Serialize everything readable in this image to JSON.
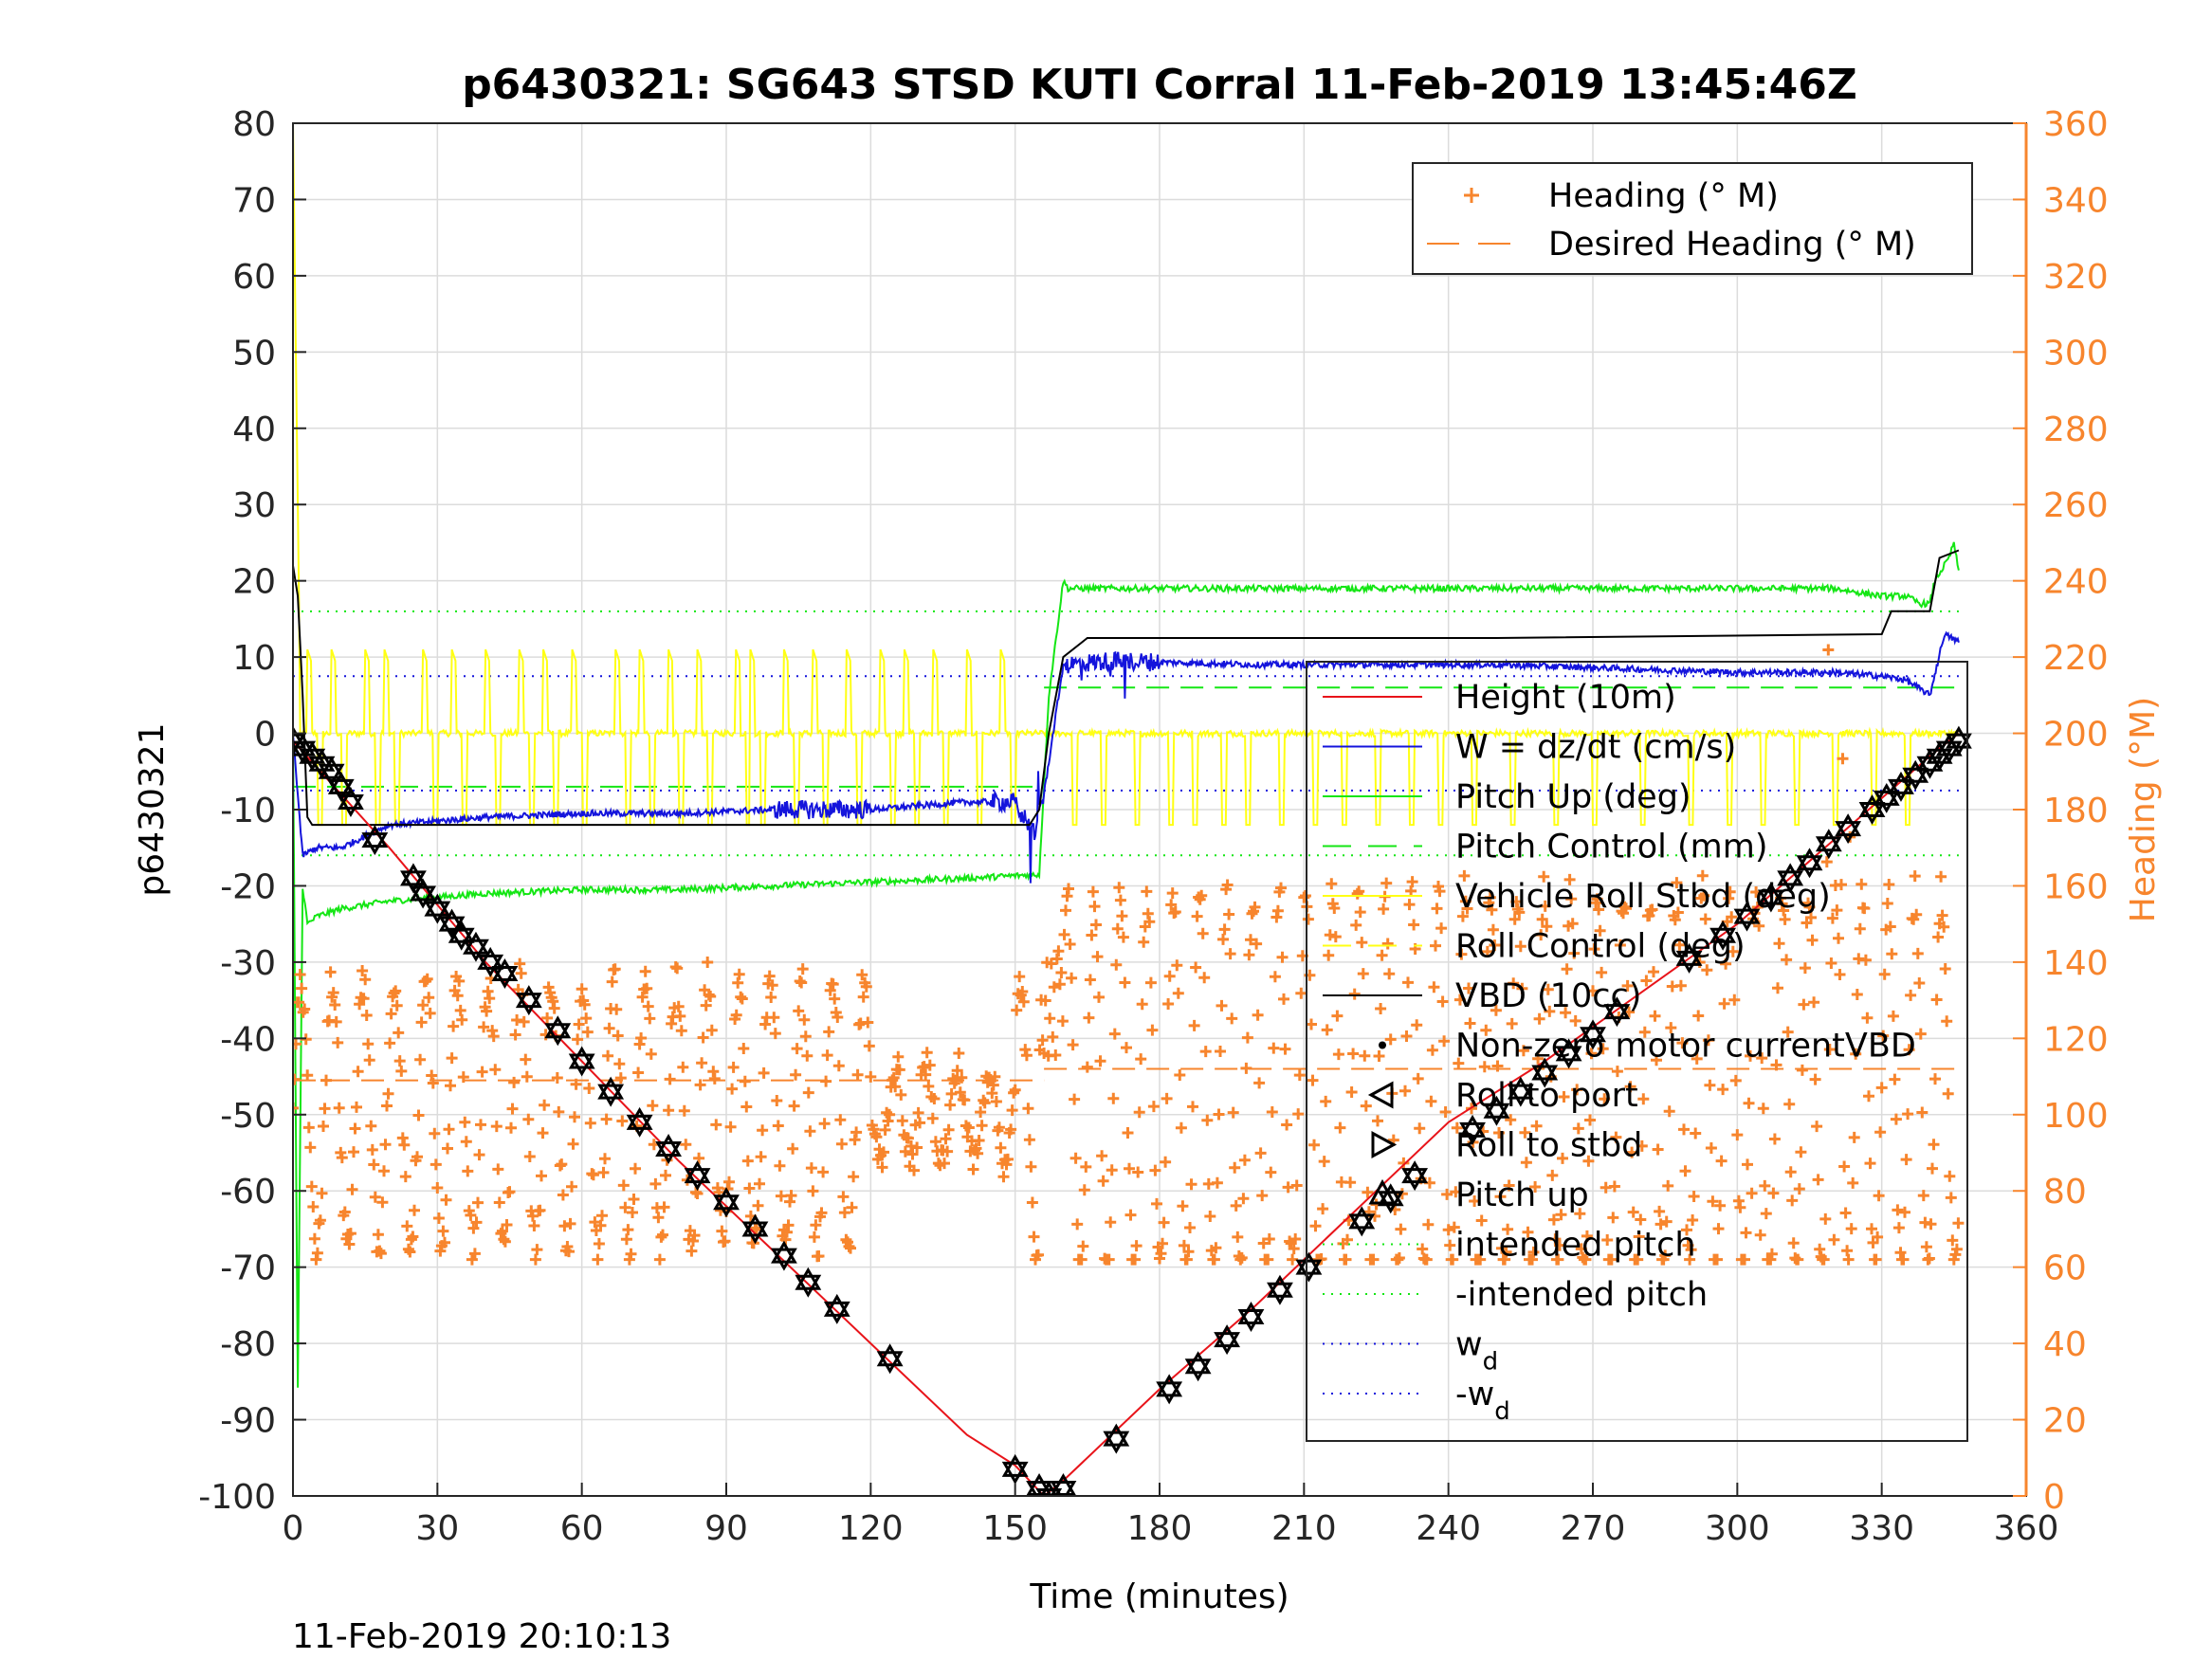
{
  "chart_data": {
    "type": "line",
    "title": "p6430321: SG643 STSD KUTI Corral 11-Feb-2019 13:45:46Z",
    "xlabel": "Time (minutes)",
    "ylabel_left": "p6430321",
    "ylabel_right": "Heading (°M)",
    "timestamp": "11-Feb-2019 20:10:13",
    "xlim": [
      0,
      360
    ],
    "ylim_left": [
      -100,
      80
    ],
    "ylim_right": [
      0,
      360
    ],
    "x_ticks": [
      "0",
      "30",
      "60",
      "90",
      "120",
      "150",
      "180",
      "210",
      "240",
      "270",
      "300",
      "330",
      "360"
    ],
    "y_left_ticks": [
      "-100",
      "-90",
      "-80",
      "-70",
      "-60",
      "-50",
      "-40",
      "-30",
      "-20",
      "-10",
      "0",
      "10",
      "20",
      "30",
      "40",
      "50",
      "60",
      "70",
      "80"
    ],
    "y_right_ticks": [
      "0",
      "20",
      "40",
      "60",
      "80",
      "100",
      "120",
      "140",
      "160",
      "180",
      "200",
      "220",
      "240",
      "260",
      "280",
      "300",
      "320",
      "340",
      "360"
    ],
    "grid": true,
    "colors": {
      "height": "#e8141a",
      "w": "#1414dc",
      "pitch": "#14e614",
      "roll": "#ffff14",
      "vbd": "#000000",
      "heading": "#f7852d"
    },
    "legend_right_axis": [
      {
        "label": "Heading (° M)",
        "style": "plus",
        "color": "#f7852d"
      },
      {
        "label": "Desired Heading (° M)",
        "style": "dash",
        "color": "#f7852d"
      }
    ],
    "legend_left_axis": [
      {
        "label": "Height (10m)",
        "style": "line",
        "color": "#e8141a"
      },
      {
        "label": "W = dz/dt (cm/s)",
        "style": "line",
        "color": "#1414dc"
      },
      {
        "label": "Pitch Up (deg)",
        "style": "line",
        "color": "#14e614"
      },
      {
        "label": "Pitch Control (mm)",
        "style": "dash",
        "color": "#14e614"
      },
      {
        "label": "Vehicle Roll Stbd (deg)",
        "style": "line",
        "color": "#ffff14"
      },
      {
        "label": "Roll Control (deg)",
        "style": "dash",
        "color": "#ffff14"
      },
      {
        "label": "VBD (10cc)",
        "style": "line",
        "color": "#000000"
      },
      {
        "label": "Non-zero motor currentVBD",
        "style": "dot",
        "color": "#000000"
      },
      {
        "label": "Roll to port",
        "style": "tri-left",
        "color": "#000000"
      },
      {
        "label": "Roll to stbd",
        "style": "tri-right",
        "color": "#000000"
      },
      {
        "label": "Pitch up",
        "style": "tri-up",
        "color": "#000000"
      },
      {
        "label": "intended pitch",
        "style": "dot-line",
        "color": "#14e614"
      },
      {
        "label": "-intended pitch",
        "style": "dot-line",
        "color": "#14e614"
      },
      {
        "label": "w",
        "sub": "d",
        "style": "dot-line",
        "color": "#1414dc"
      },
      {
        "label": "-w",
        "sub": "d",
        "style": "dot-line",
        "color": "#1414dc"
      }
    ],
    "reference_lines": {
      "intended_pitch": 16,
      "w_d": 7.5,
      "pitch_control_dive": -7,
      "pitch_control_climb": 6,
      "desired_heading_dive": 109,
      "desired_heading_climb": 112
    },
    "series": [
      {
        "name": "Height (10m)",
        "x": [
          0,
          10,
          20,
          40,
          60,
          80,
          100,
          120,
          140,
          150,
          156,
          160,
          180,
          200,
          220,
          240,
          260,
          280,
          300,
          320,
          340,
          346
        ],
        "y": [
          -1,
          -8,
          -15,
          -30,
          -43,
          -56,
          -68,
          -80,
          -92,
          -96,
          -100,
          -98,
          -86,
          -75,
          -63,
          -51,
          -43,
          -34,
          -25,
          -14,
          -3,
          0
        ]
      },
      {
        "name": "W = dz/dt (cm/s)",
        "x": [
          0,
          2,
          5,
          10,
          20,
          40,
          60,
          80,
          100,
          120,
          140,
          150,
          154,
          156,
          160,
          170,
          200,
          250,
          300,
          320,
          330,
          335,
          340,
          343,
          346
        ],
        "y": [
          0,
          -16,
          -15,
          -15,
          -12,
          -11,
          -10.5,
          -10.5,
          -10,
          -10,
          -9,
          -9,
          -13,
          -8,
          9,
          9.5,
          9,
          9,
          8,
          8,
          7.5,
          7,
          5,
          13,
          12
        ]
      },
      {
        "name": "Pitch Up (deg)",
        "x": [
          0,
          1,
          2,
          3,
          5,
          10,
          20,
          40,
          60,
          80,
          100,
          120,
          140,
          155,
          157,
          160,
          161,
          170,
          200,
          250,
          300,
          320,
          330,
          335,
          338,
          340,
          341,
          344,
          345,
          346
        ],
        "y": [
          0,
          -86,
          -20,
          -25,
          -24,
          -23,
          -22,
          -21,
          -20.5,
          -20.5,
          -20,
          -19.5,
          -19,
          -18.5,
          5,
          20,
          19,
          19,
          19,
          19,
          19,
          19,
          18,
          18,
          17,
          17,
          20,
          23,
          25,
          21
        ]
      },
      {
        "name": "VBD (10cc)",
        "x": [
          0,
          1,
          2,
          3,
          4,
          10,
          20,
          40,
          60,
          80,
          100,
          110,
          140,
          153,
          155,
          157,
          160,
          165,
          250,
          330,
          332,
          340,
          342,
          346
        ],
        "y": [
          22,
          18,
          5,
          -11,
          -12,
          -12,
          -12,
          -12,
          -12,
          -12,
          -12,
          -12,
          -12,
          -12,
          -10,
          0,
          10,
          12.5,
          12.5,
          13,
          16,
          16,
          23,
          24
        ]
      }
    ],
    "heading": {
      "x_start": 0,
      "x_end": 346,
      "level_dive": 100,
      "level_climb": 108,
      "cycle_minutes_dive": 6.5,
      "cycle_minutes_climb": 5.5,
      "amplitude_dive": 35,
      "amplitude_climb": 50,
      "peak_max": 236,
      "trough_min": 62
    },
    "roll_spikes": {
      "dive_times": [
        3,
        8,
        15,
        19,
        27,
        33,
        40,
        47,
        52,
        58,
        67,
        72,
        78,
        84,
        92,
        95,
        102,
        108,
        115,
        122,
        127,
        133,
        140,
        147
      ],
      "climb_times": [
        162,
        168,
        175,
        182,
        187,
        193,
        198,
        205,
        212,
        218,
        225,
        232,
        238,
        245,
        253,
        262,
        270,
        280,
        290,
        298,
        305,
        312,
        320,
        328,
        335
      ],
      "dive_base": 0,
      "dive_spike": 11,
      "dive_dip": -12,
      "climb_base": 0,
      "climb_spike": -12
    },
    "markers": {
      "x": [
        0,
        2,
        4,
        6,
        8,
        10,
        12,
        17,
        25,
        27,
        30,
        33,
        35,
        38,
        41,
        44,
        49,
        55,
        60,
        66,
        72,
        78,
        84,
        90,
        96,
        102,
        107,
        113,
        124,
        150,
        155,
        157,
        160,
        171,
        182,
        188,
        194,
        199,
        205,
        211,
        222,
        228,
        233,
        245,
        250,
        255,
        260,
        265,
        270,
        275,
        290,
        297,
        302,
        307,
        311,
        315,
        319,
        323,
        328,
        331,
        334,
        337,
        340,
        342,
        344,
        346
      ],
      "y": [
        -1,
        -2,
        -3,
        -4,
        -5,
        -7,
        -9,
        -14,
        -19,
        -21,
        -23,
        -25,
        -26.5,
        -28,
        -30,
        -31.5,
        -35,
        -39,
        -43,
        -47,
        -51,
        -54.5,
        -58,
        -61.5,
        -65,
        -68.5,
        -72,
        -75.5,
        -82,
        -96.5,
        -99,
        -100,
        -99,
        -92.5,
        -86,
        -83,
        -79.5,
        -76.5,
        -73,
        -70,
        -64,
        -61,
        -58,
        -52,
        -49.5,
        -47,
        -44.5,
        -42,
        -39.5,
        -36.5,
        -29.5,
        -26.5,
        -24,
        -21.5,
        -19,
        -17,
        -14.5,
        -12.5,
        -10,
        -8.5,
        -7,
        -5.5,
        -4,
        -3,
        -2,
        -1
      ]
    }
  }
}
